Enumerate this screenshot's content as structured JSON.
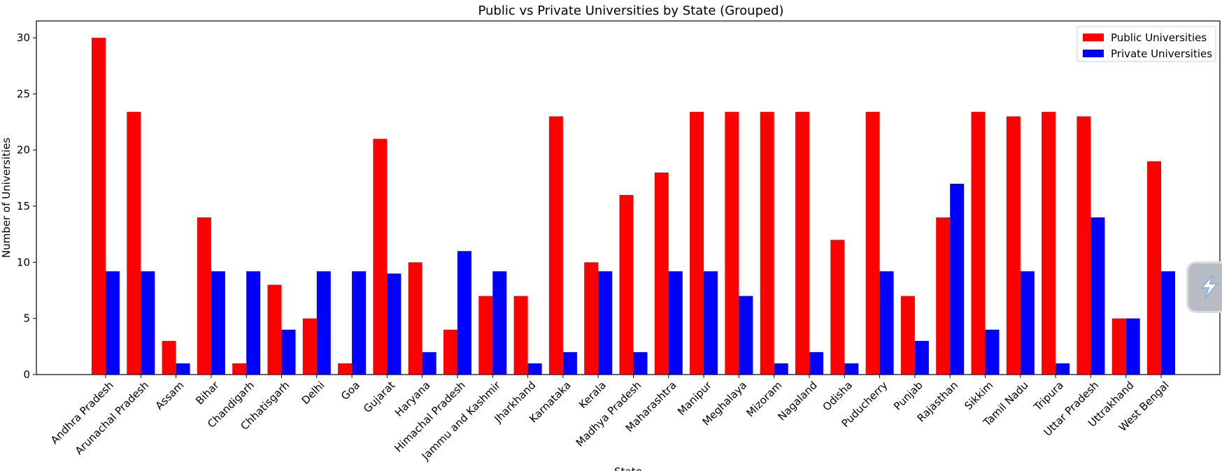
{
  "chart_data": {
    "type": "bar",
    "title": "Public vs Private Universities by State (Grouped)",
    "xlabel": "State",
    "ylabel": "Number of Universities",
    "ylim": [
      0,
      31.5
    ],
    "yticks": [
      0,
      5,
      10,
      15,
      20,
      25,
      30
    ],
    "grid": false,
    "legend_position": "top-right",
    "categories": [
      "Andhra Pradesh",
      "Arunachal Pradesh",
      "Assam",
      "Bihar",
      "Chandigarh",
      "Chhatisgarh",
      "Delhi",
      "Goa",
      "Gujarat",
      "Haryana",
      "Himachal Pradesh",
      "Jammu and Kashmir",
      "Jharkhand",
      "Karnataka",
      "Kerala",
      "Madhya Pradesh",
      "Maharashtra",
      "Manipur",
      "Meghalaya",
      "Mizoram",
      "Nagaland",
      "Odisha",
      "Puducherry",
      "Punjab",
      "Rajasthan",
      "Sikkim",
      "Tamil Nadu",
      "Tripura",
      "Uttar Pradesh",
      "Uttrakhand",
      "West Bengal"
    ],
    "series": [
      {
        "name": "Public Universities",
        "color": "#ff0000",
        "values": [
          30,
          23.4,
          3,
          14,
          1,
          8,
          5,
          1,
          21,
          10,
          4,
          7,
          7,
          23,
          10,
          16,
          18,
          23.4,
          23.4,
          23.4,
          23.4,
          12,
          23.4,
          7,
          14,
          23.4,
          23,
          23.4,
          23,
          5,
          19
        ]
      },
      {
        "name": "Private Universities",
        "color": "#0000ff",
        "values": [
          9.2,
          9.2,
          1,
          9.2,
          9.2,
          4,
          9.2,
          9.2,
          9,
          2,
          11,
          9.2,
          1,
          2,
          9.2,
          2,
          9.2,
          9.2,
          7,
          1,
          2,
          1,
          9.2,
          3,
          17,
          4,
          9.2,
          1,
          14,
          5,
          9.2
        ]
      }
    ]
  }
}
